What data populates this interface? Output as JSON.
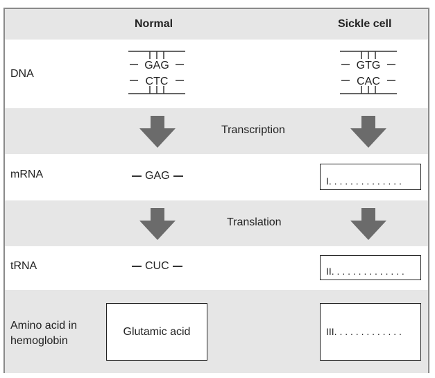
{
  "headers": {
    "normal": "Normal",
    "sickle": "Sickle cell"
  },
  "rows": {
    "dna": "DNA",
    "mrna": "mRNA",
    "trna": "tRNA",
    "amino": "Amino acid in hemoglobin"
  },
  "processes": {
    "transcription": "Transcription",
    "translation": "Translation"
  },
  "normal": {
    "dna_top": "GAG",
    "dna_bottom": "CTC",
    "mrna": "GAG",
    "trna": "CUC",
    "amino_acid": "Glutamic acid"
  },
  "sickle": {
    "dna_top": "GTG",
    "dna_bottom": "CAC",
    "blank_mrna": "I. . . . . . . . . . . . . .",
    "blank_trna": "II. . . . . . . . . . . . . .",
    "blank_amino": "III. . . . . . . . . . . . ."
  },
  "colors": {
    "band": "#e6e6e6",
    "arrow": "#6b6b6b",
    "frame": "#8a8a8a"
  }
}
